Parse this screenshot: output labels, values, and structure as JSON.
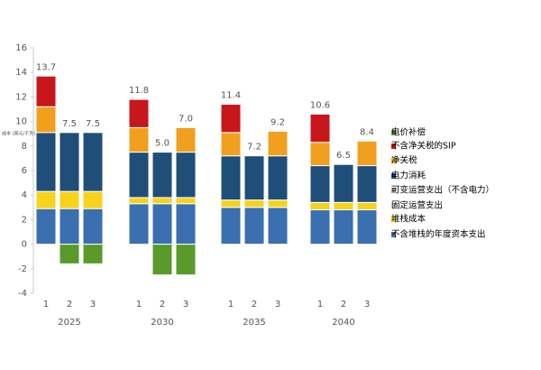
{
  "chart_data": {
    "type": "stacked-bar",
    "y_label": "成本 (美元/千克)",
    "groups": [
      "2025",
      "2030",
      "2035",
      "2040"
    ],
    "categories": [
      "1",
      "2",
      "3",
      "1",
      "2",
      "3",
      "1",
      "2",
      "3",
      "1",
      "2",
      "3"
    ],
    "ylim": [
      -4,
      16
    ],
    "yticks": [
      -4,
      -2,
      0,
      2,
      4,
      6,
      8,
      10,
      12,
      14,
      16
    ],
    "series": [
      {
        "name": "不含堆栈的年度资本支出",
        "color": "#3a6fb0",
        "values": [
          2.9,
          2.9,
          2.9,
          3.3,
          3.3,
          3.3,
          3.0,
          3.0,
          3.0,
          2.8,
          2.8,
          2.8
        ]
      },
      {
        "name": "堆栈成本",
        "color": "#f7d21a",
        "values": [
          1.4,
          1.4,
          1.4,
          0.5,
          0.5,
          0.5,
          0.6,
          0.6,
          0.6,
          0.6,
          0.6,
          0.6
        ]
      },
      {
        "name": "固定运营支出",
        "color": "#d9d9d9",
        "values": [
          0,
          0,
          0,
          0,
          0,
          0,
          0,
          0,
          0,
          0,
          0,
          0
        ]
      },
      {
        "name": "可变运营支出（不含电力）",
        "color": "#a6a6a6",
        "values": [
          0,
          0,
          0,
          0,
          0,
          0,
          0,
          0,
          0,
          0,
          0,
          0
        ]
      },
      {
        "name": "电力消耗",
        "color": "#1f4e79",
        "values": [
          4.8,
          4.8,
          4.8,
          3.7,
          3.7,
          3.7,
          3.6,
          3.6,
          3.6,
          3.0,
          3.1,
          3.0
        ]
      },
      {
        "name": "净关税",
        "color": "#f0a01e",
        "values": [
          2.1,
          0,
          0,
          2.0,
          0,
          2.0,
          1.9,
          0,
          2.0,
          1.9,
          0,
          2.0
        ]
      },
      {
        "name": "不含净关税的SIP",
        "color": "#c8161d",
        "values": [
          2.5,
          0,
          0,
          2.3,
          0,
          0,
          2.3,
          0,
          0,
          2.3,
          0,
          0
        ]
      },
      {
        "name": "电价补偿",
        "color": "#5a9a2a",
        "values": [
          0,
          -1.6,
          -1.6,
          0,
          -2.5,
          -2.5,
          0,
          0,
          0,
          0,
          0,
          0
        ]
      }
    ],
    "totals": {
      "values": [
        13.7,
        7.5,
        7.5,
        11.8,
        5,
        7,
        11.4,
        7.2,
        9.2,
        10.6,
        6.5,
        8.4
      ],
      "value_labels": [
        "13.7",
        "7.5",
        "7.5",
        "11.8",
        "5.0",
        "7.0",
        "11.4",
        "7.2",
        "9.2",
        "10.6",
        "6.5",
        "8.4"
      ]
    }
  }
}
